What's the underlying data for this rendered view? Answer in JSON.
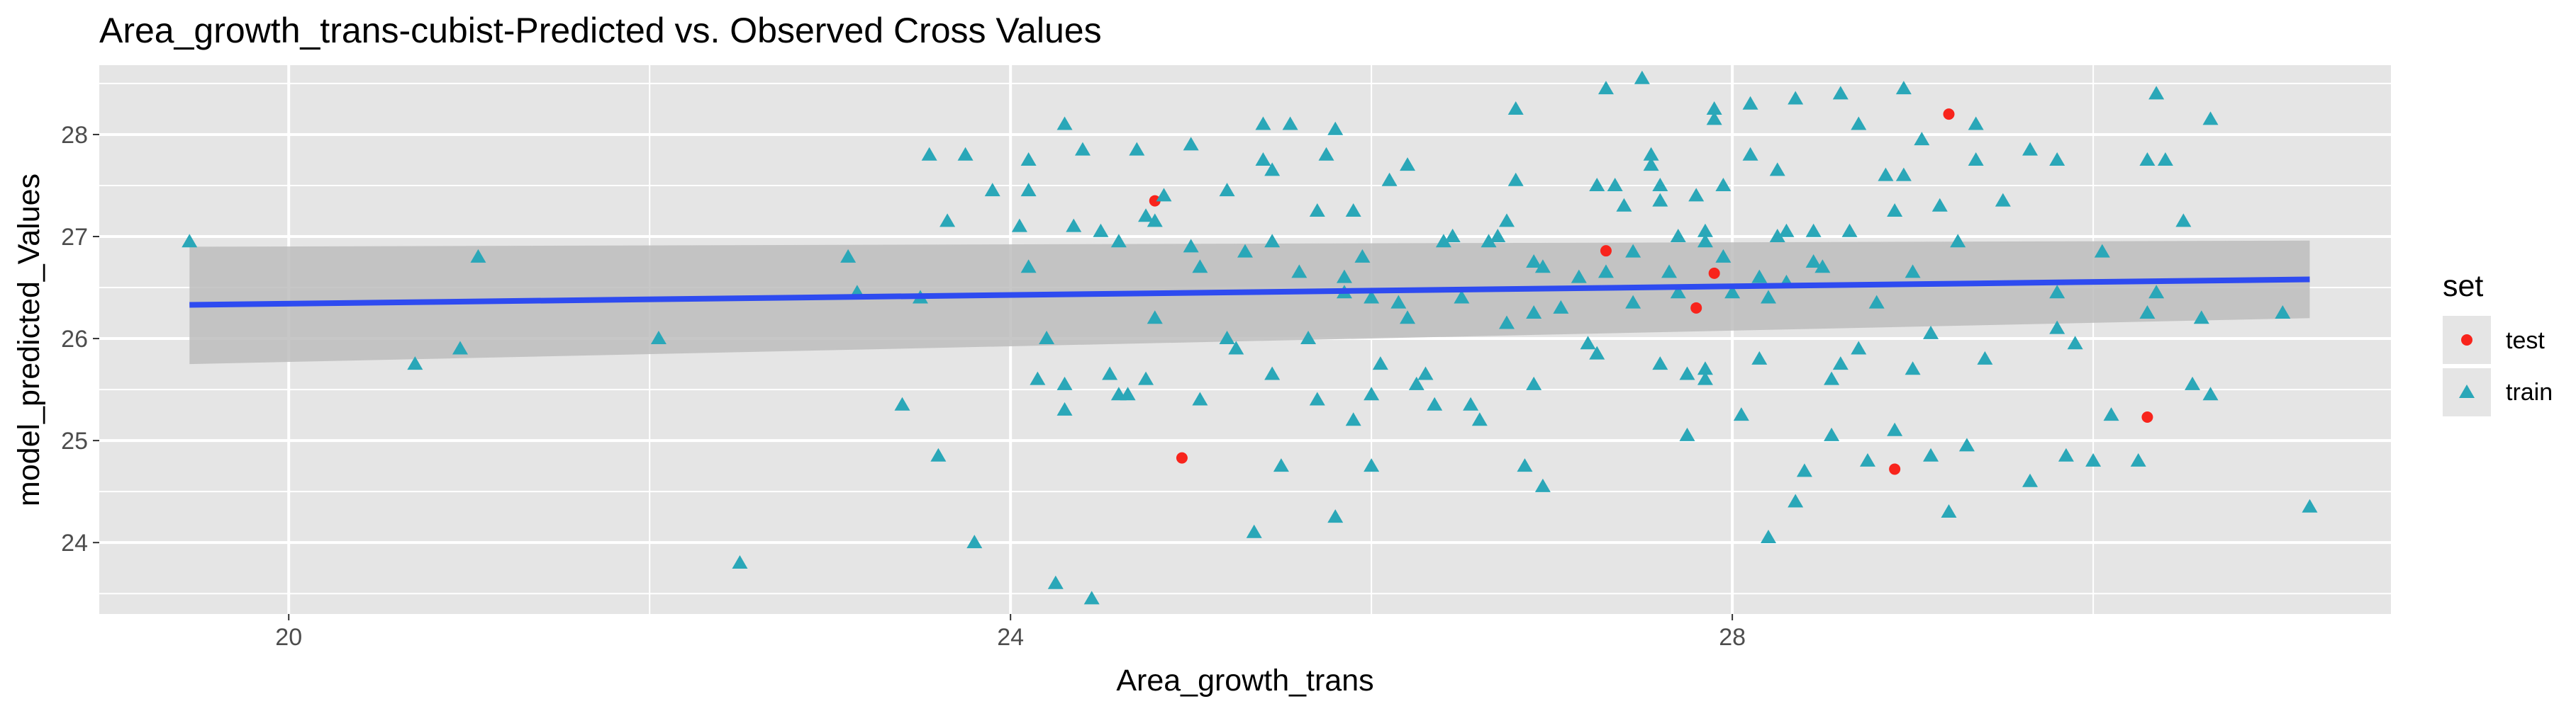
{
  "chart_data": {
    "type": "scatter",
    "title": "Area_growth_trans-cubist-Predicted vs. Observed Cross Values",
    "xlabel": "Area_growth_trans",
    "ylabel": "model_predicted_Values",
    "xlim": [
      18.95,
      31.65
    ],
    "ylim": [
      23.3,
      28.68
    ],
    "x_ticks": [
      20,
      24,
      28
    ],
    "y_ticks": [
      24,
      25,
      26,
      27,
      28
    ],
    "x_tick_labels": [
      "20",
      "24",
      "28"
    ],
    "y_tick_labels": [
      "24",
      "25",
      "26",
      "27",
      "28"
    ],
    "grid": true,
    "legend": {
      "title": "set",
      "position": "right",
      "entries": [
        "test",
        "train"
      ]
    },
    "colors": {
      "test": "#f8241c",
      "train": "#2aa7b8",
      "fit_line": "#2e4bf0",
      "ribbon": "#bdbdbd",
      "panel": "#e5e5e5",
      "grid": "#ffffff"
    },
    "fit_line": {
      "x": [
        19.45,
        31.2
      ],
      "y": [
        26.33,
        26.58
      ],
      "band_lower": [
        25.75,
        26.2
      ],
      "band_upper": [
        26.9,
        26.96
      ]
    },
    "series": [
      {
        "name": "test",
        "marker": "circle",
        "points": [
          [
            24.8,
            27.35
          ],
          [
            24.95,
            24.83
          ],
          [
            27.3,
            26.86
          ],
          [
            27.8,
            26.3
          ],
          [
            27.9,
            26.64
          ],
          [
            28.9,
            24.72
          ],
          [
            29.2,
            28.2
          ],
          [
            30.3,
            25.23
          ]
        ]
      },
      {
        "name": "train",
        "marker": "triangle",
        "points": [
          [
            19.45,
            26.95
          ],
          [
            20.7,
            25.75
          ],
          [
            20.95,
            25.9
          ],
          [
            21.05,
            26.8
          ],
          [
            22.05,
            26.0
          ],
          [
            22.5,
            23.8
          ],
          [
            23.1,
            26.8
          ],
          [
            23.15,
            26.45
          ],
          [
            23.4,
            25.35
          ],
          [
            23.5,
            26.4
          ],
          [
            23.55,
            27.8
          ],
          [
            23.6,
            24.85
          ],
          [
            23.65,
            27.15
          ],
          [
            23.75,
            27.8
          ],
          [
            23.8,
            24.0
          ],
          [
            23.9,
            27.45
          ],
          [
            24.05,
            27.1
          ],
          [
            24.1,
            27.75
          ],
          [
            24.1,
            27.45
          ],
          [
            24.1,
            26.7
          ],
          [
            24.15,
            25.6
          ],
          [
            24.2,
            26.0
          ],
          [
            24.25,
            23.6
          ],
          [
            24.3,
            28.1
          ],
          [
            24.3,
            25.55
          ],
          [
            24.3,
            25.3
          ],
          [
            24.35,
            27.1
          ],
          [
            24.4,
            27.85
          ],
          [
            24.45,
            23.45
          ],
          [
            24.5,
            27.05
          ],
          [
            24.55,
            25.65
          ],
          [
            24.6,
            25.45
          ],
          [
            24.6,
            26.95
          ],
          [
            24.65,
            25.45
          ],
          [
            24.7,
            27.85
          ],
          [
            24.75,
            27.2
          ],
          [
            24.75,
            25.6
          ],
          [
            24.8,
            27.15
          ],
          [
            24.8,
            26.2
          ],
          [
            24.85,
            27.4
          ],
          [
            25.0,
            27.9
          ],
          [
            25.0,
            26.9
          ],
          [
            25.05,
            25.4
          ],
          [
            25.05,
            26.7
          ],
          [
            25.2,
            27.45
          ],
          [
            25.2,
            26.0
          ],
          [
            25.25,
            25.9
          ],
          [
            25.3,
            26.85
          ],
          [
            25.35,
            24.1
          ],
          [
            25.4,
            28.1
          ],
          [
            25.4,
            27.75
          ],
          [
            25.45,
            26.95
          ],
          [
            25.45,
            27.65
          ],
          [
            25.45,
            25.65
          ],
          [
            25.5,
            24.75
          ],
          [
            25.55,
            28.1
          ],
          [
            25.6,
            26.65
          ],
          [
            25.65,
            26.0
          ],
          [
            25.7,
            27.25
          ],
          [
            25.7,
            25.4
          ],
          [
            25.75,
            27.8
          ],
          [
            25.8,
            28.05
          ],
          [
            25.8,
            24.25
          ],
          [
            25.85,
            26.6
          ],
          [
            25.9,
            27.25
          ],
          [
            25.9,
            25.2
          ],
          [
            25.95,
            26.8
          ],
          [
            26.0,
            26.4
          ],
          [
            26.0,
            25.45
          ],
          [
            26.0,
            24.75
          ],
          [
            26.05,
            25.75
          ],
          [
            26.1,
            27.55
          ],
          [
            26.15,
            26.35
          ],
          [
            26.2,
            27.7
          ],
          [
            26.2,
            26.2
          ],
          [
            26.25,
            25.55
          ],
          [
            26.3,
            25.65
          ],
          [
            26.35,
            25.35
          ],
          [
            26.4,
            26.95
          ],
          [
            26.45,
            27.0
          ],
          [
            26.5,
            26.4
          ],
          [
            26.55,
            25.35
          ],
          [
            26.6,
            25.2
          ],
          [
            26.65,
            26.95
          ],
          [
            26.7,
            27.0
          ],
          [
            26.75,
            27.15
          ],
          [
            26.75,
            26.15
          ],
          [
            26.8,
            28.25
          ],
          [
            26.8,
            27.55
          ],
          [
            26.85,
            24.75
          ],
          [
            26.9,
            26.75
          ],
          [
            26.9,
            26.25
          ],
          [
            26.9,
            25.55
          ],
          [
            26.95,
            26.7
          ],
          [
            26.95,
            24.55
          ],
          [
            27.05,
            26.3
          ],
          [
            27.15,
            26.6
          ],
          [
            27.2,
            25.95
          ],
          [
            27.25,
            25.85
          ],
          [
            27.25,
            27.5
          ],
          [
            27.3,
            26.65
          ],
          [
            27.3,
            28.45
          ],
          [
            27.35,
            27.5
          ],
          [
            27.4,
            27.3
          ],
          [
            27.45,
            26.35
          ],
          [
            27.45,
            26.85
          ],
          [
            27.5,
            28.55
          ],
          [
            27.55,
            27.8
          ],
          [
            27.55,
            27.7
          ],
          [
            27.6,
            27.5
          ],
          [
            27.6,
            27.35
          ],
          [
            27.6,
            25.75
          ],
          [
            27.65,
            26.65
          ],
          [
            27.7,
            27.0
          ],
          [
            27.7,
            26.45
          ],
          [
            27.75,
            25.05
          ],
          [
            27.75,
            25.65
          ],
          [
            27.8,
            27.4
          ],
          [
            27.85,
            25.6
          ],
          [
            27.85,
            26.95
          ],
          [
            27.85,
            27.05
          ],
          [
            27.85,
            25.7
          ],
          [
            27.9,
            28.25
          ],
          [
            27.9,
            28.15
          ],
          [
            27.95,
            27.5
          ],
          [
            27.95,
            26.8
          ],
          [
            28.0,
            26.45
          ],
          [
            28.05,
            25.25
          ],
          [
            28.1,
            28.3
          ],
          [
            28.1,
            27.8
          ],
          [
            28.15,
            26.6
          ],
          [
            28.15,
            25.8
          ],
          [
            28.2,
            26.4
          ],
          [
            28.2,
            24.05
          ],
          [
            28.25,
            27.65
          ],
          [
            28.25,
            27.0
          ],
          [
            28.3,
            27.05
          ],
          [
            28.3,
            26.55
          ],
          [
            28.35,
            28.35
          ],
          [
            28.35,
            24.4
          ],
          [
            28.4,
            24.7
          ],
          [
            28.45,
            27.05
          ],
          [
            28.45,
            26.75
          ],
          [
            28.5,
            26.7
          ],
          [
            28.55,
            25.05
          ],
          [
            28.55,
            25.6
          ],
          [
            28.6,
            25.75
          ],
          [
            28.6,
            28.4
          ],
          [
            28.65,
            27.05
          ],
          [
            28.7,
            28.1
          ],
          [
            28.7,
            25.9
          ],
          [
            28.75,
            24.8
          ],
          [
            28.8,
            26.35
          ],
          [
            28.85,
            27.6
          ],
          [
            28.9,
            27.25
          ],
          [
            28.9,
            25.1
          ],
          [
            28.95,
            28.45
          ],
          [
            28.95,
            27.6
          ],
          [
            29.0,
            26.65
          ],
          [
            29.0,
            25.7
          ],
          [
            29.05,
            27.95
          ],
          [
            29.1,
            24.85
          ],
          [
            29.1,
            26.05
          ],
          [
            29.15,
            27.3
          ],
          [
            29.2,
            24.3
          ],
          [
            29.25,
            26.95
          ],
          [
            29.3,
            24.95
          ],
          [
            29.35,
            28.1
          ],
          [
            29.35,
            27.75
          ],
          [
            29.4,
            25.8
          ],
          [
            29.5,
            27.35
          ],
          [
            29.65,
            24.6
          ],
          [
            29.65,
            27.85
          ],
          [
            29.8,
            27.75
          ],
          [
            29.8,
            26.45
          ],
          [
            29.8,
            26.1
          ],
          [
            29.85,
            24.85
          ],
          [
            29.9,
            25.95
          ],
          [
            30.0,
            24.8
          ],
          [
            30.05,
            26.85
          ],
          [
            30.1,
            25.25
          ],
          [
            30.25,
            24.8
          ],
          [
            30.3,
            27.75
          ],
          [
            30.3,
            26.25
          ],
          [
            30.35,
            26.45
          ],
          [
            30.35,
            28.4
          ],
          [
            30.4,
            27.75
          ],
          [
            30.5,
            27.15
          ],
          [
            30.55,
            25.55
          ],
          [
            30.6,
            26.2
          ],
          [
            30.65,
            28.15
          ],
          [
            30.65,
            25.45
          ],
          [
            31.05,
            26.25
          ],
          [
            31.2,
            24.35
          ],
          [
            26.45,
            27.0
          ],
          [
            25.85,
            26.45
          ]
        ]
      }
    ]
  }
}
